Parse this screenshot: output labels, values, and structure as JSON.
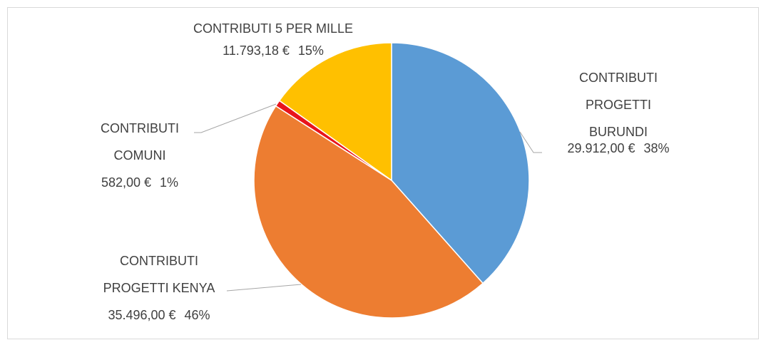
{
  "chart_data": {
    "type": "pie",
    "categories": [
      "CONTRIBUTI PROGETTI BURUNDI",
      "CONTRIBUTI PROGETTI KENYA",
      "CONTRIBUTI COMUNI",
      "CONTRIBUTI 5 PER MILLE"
    ],
    "values": [
      29912.0,
      35496.0,
      582.0,
      11793.18
    ],
    "value_labels": [
      "29.912,00 €",
      "35.496,00 €",
      "582,00 €",
      "11.793,18 €"
    ],
    "percent_labels": [
      "38%",
      "46%",
      "1%",
      "15%"
    ],
    "colors": [
      "#5b9bd5",
      "#ed7d31",
      "#e8141c",
      "#ffc000"
    ]
  }
}
